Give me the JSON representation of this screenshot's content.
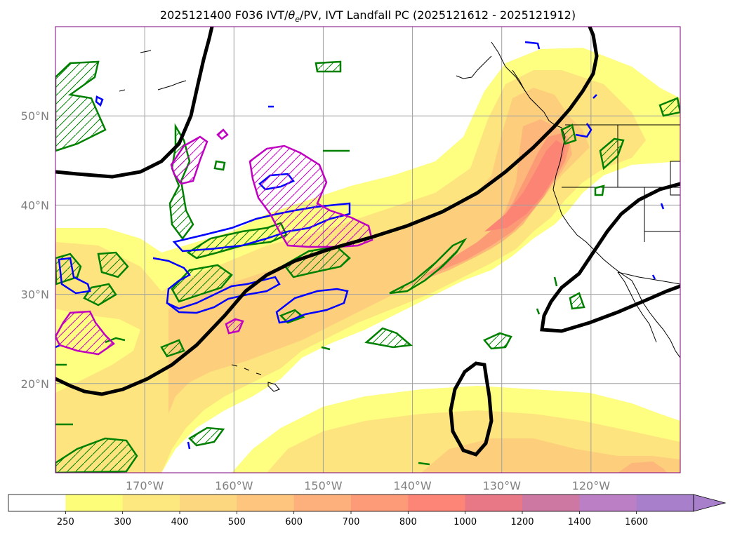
{
  "title": {
    "prefix": "2025121400 F036 IVT/",
    "theta": "θ",
    "sub": "e",
    "suffix": "/PV, IVT Landfall PC (2025121612 - 2025121912)"
  },
  "map": {
    "lon_min": -180,
    "lon_max": -110,
    "lat_min": 10,
    "lat_max": 60,
    "lon_labels": [
      "170°W",
      "160°W",
      "150°W",
      "140°W",
      "130°W",
      "120°W"
    ],
    "lat_labels": [
      "50°N",
      "40°N",
      "30°N",
      "20°N"
    ],
    "grid": true
  },
  "colorbar": {
    "ticks": [
      "250",
      "300",
      "400",
      "500",
      "600",
      "700",
      "800",
      "1000",
      "1200",
      "1400",
      "1600"
    ],
    "colors": [
      "#ffffff",
      "#fdfd7a",
      "#fde880",
      "#fdd680",
      "#fdc57e",
      "#fdb07c",
      "#fd9b78",
      "#fd8577",
      "#e87885",
      "#cc78a2",
      "#ba7fc4",
      "#a77fcb"
    ],
    "extend": "max"
  },
  "layers": {
    "ivt_fill_colors": [
      "#fefe80",
      "#fde47e",
      "#fdcf7d",
      "#fdb77a",
      "#fd9a76",
      "#fb8475"
    ],
    "theta_e_color": "#008000",
    "pv_color": "#0000ff",
    "pc_color": "#c000c0",
    "contour_color": "#000000"
  }
}
